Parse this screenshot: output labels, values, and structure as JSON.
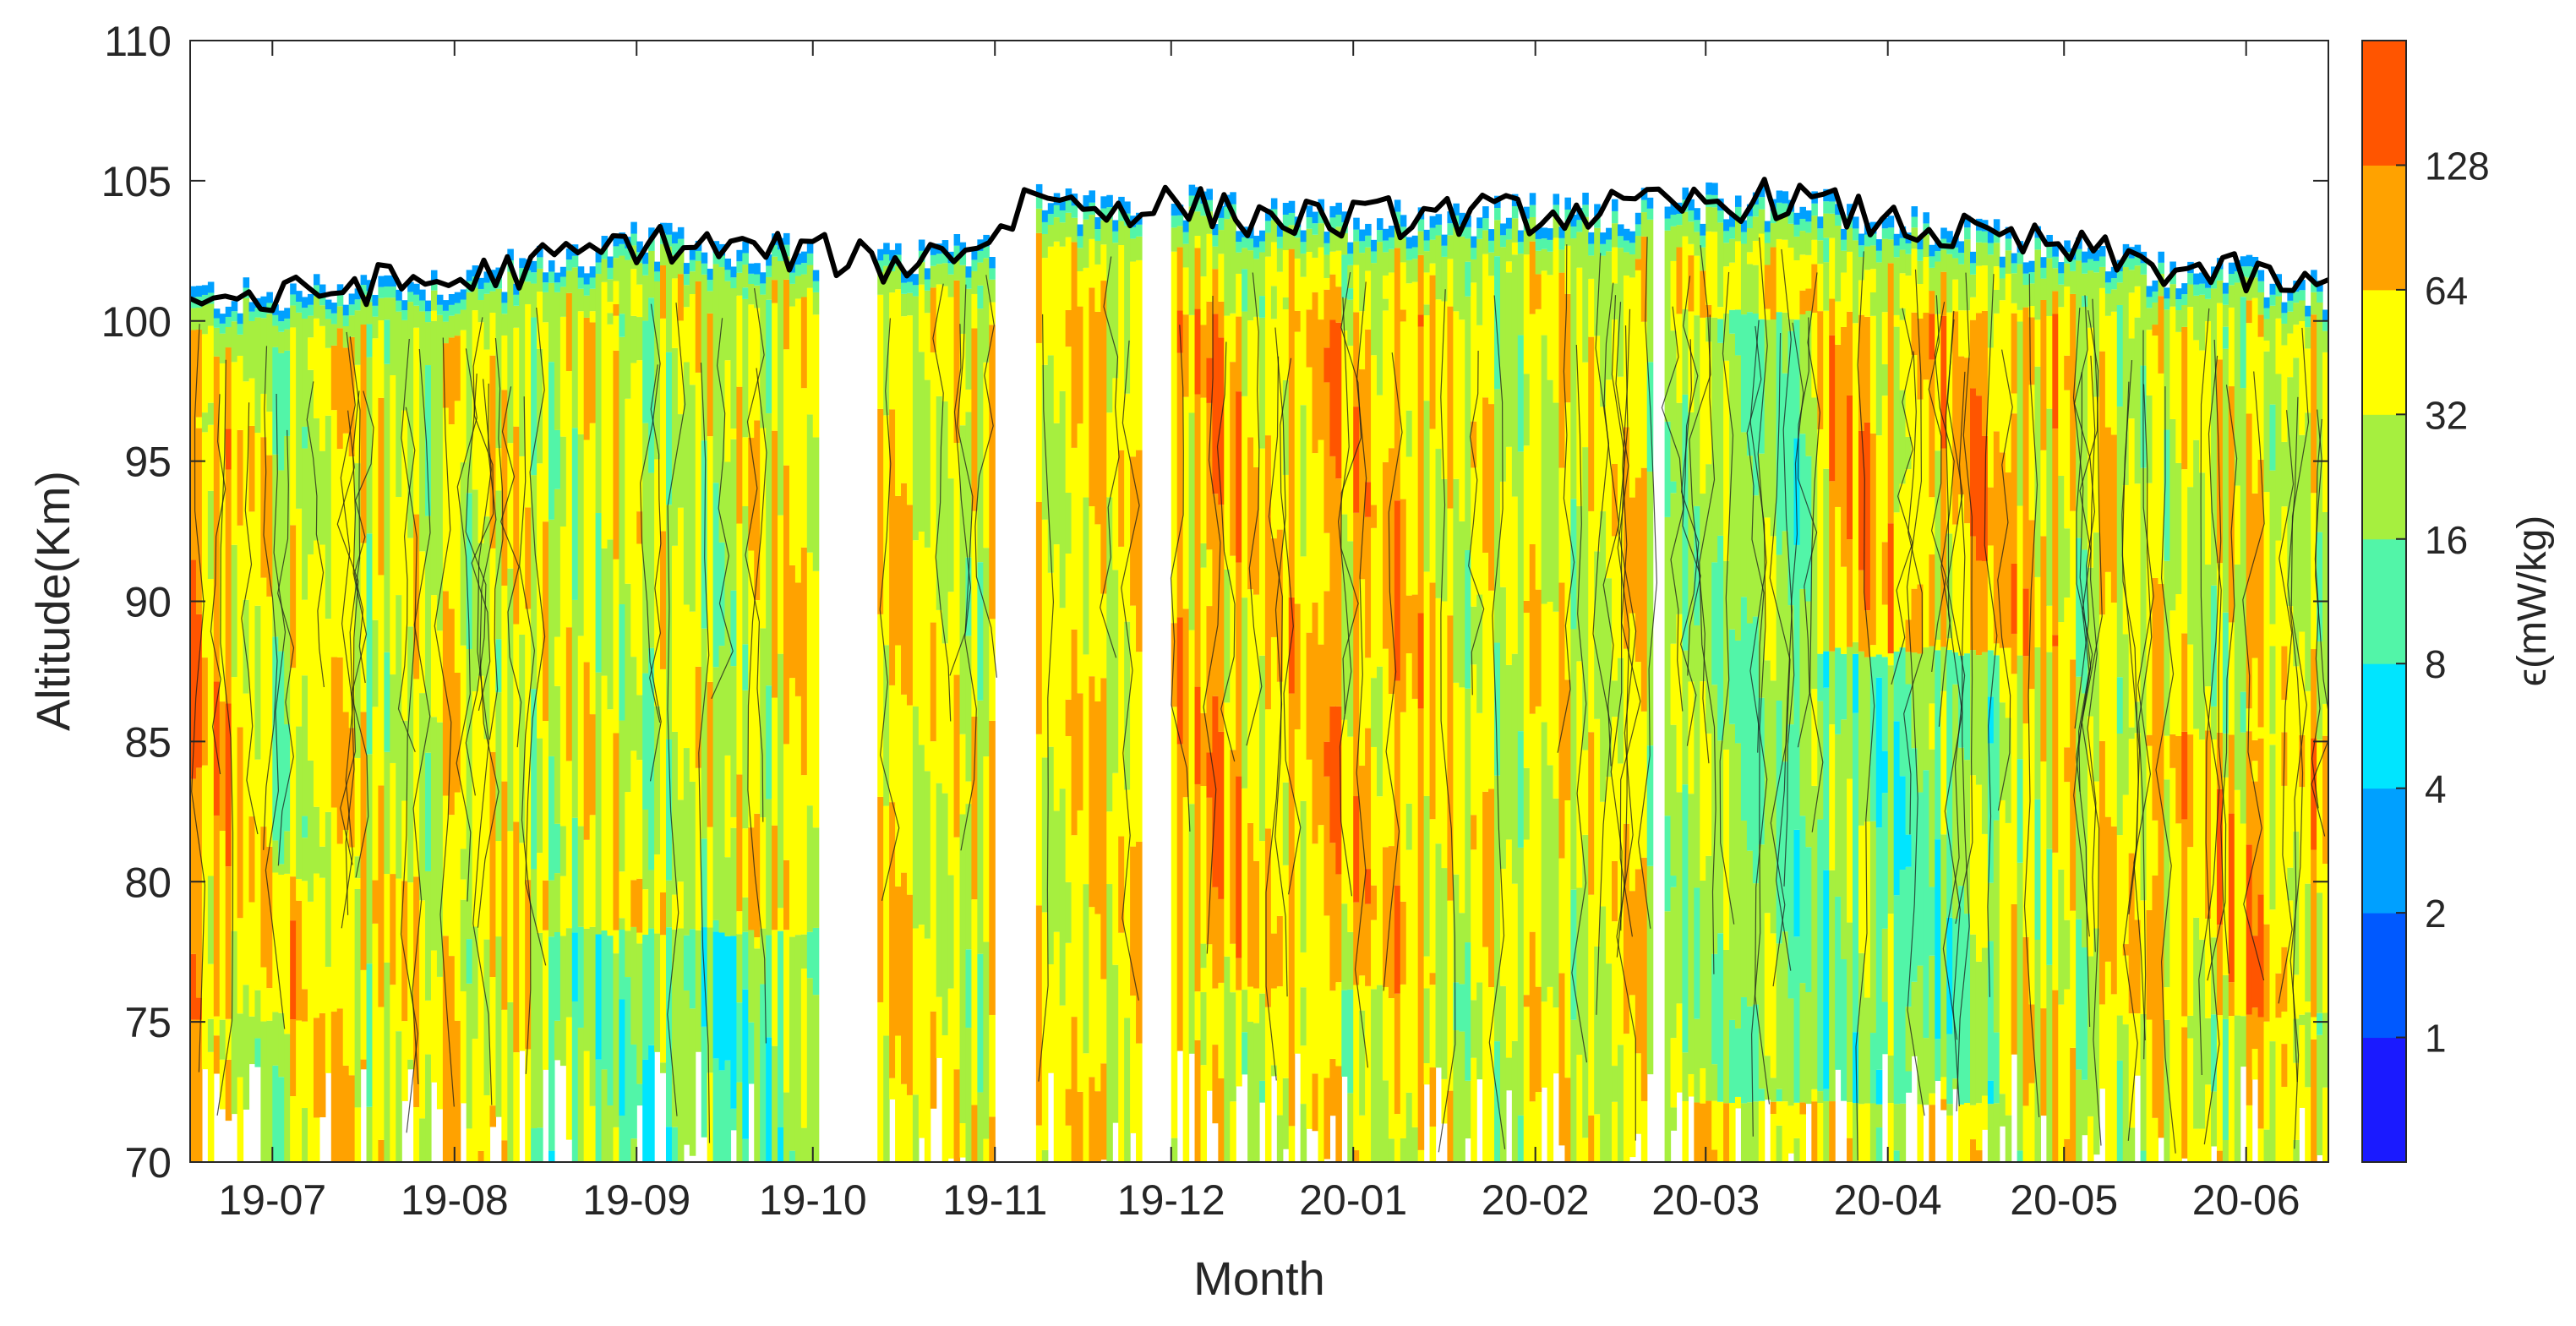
{
  "chart_data": {
    "type": "heatmap",
    "subtype": "filled-contour",
    "xlabel": "Month",
    "ylabel": "Altitude(Km)",
    "colorbar_label": "ϵ(mW/kg)",
    "x_ticks": [
      "19-07",
      "19-08",
      "19-09",
      "19-10",
      "19-11",
      "19-12",
      "20-01",
      "20-02",
      "20-03",
      "20-04",
      "20-05",
      "20-06"
    ],
    "xlim": [
      "2019-06-17",
      "2020-06-15"
    ],
    "ylim": [
      70,
      110
    ],
    "y_ticks": [
      70,
      75,
      80,
      85,
      90,
      95,
      100,
      105,
      110
    ],
    "grid": false,
    "colorbar": {
      "scale": "log2",
      "levels": [
        0.5,
        1,
        2,
        4,
        8,
        16,
        32,
        64,
        128,
        256
      ],
      "tick_labels": [
        "1",
        "2",
        "4",
        "8",
        "16",
        "32",
        "64",
        "128"
      ],
      "colors": [
        "#1a1aff",
        "#0059ff",
        "#00a0ff",
        "#00e5ff",
        "#52f5a8",
        "#a6ef3f",
        "#ffff00",
        "#ffa200",
        "#ff5500"
      ]
    },
    "data_gaps": [
      [
        "2019-10-02",
        "2019-10-12"
      ],
      [
        "2019-11-01",
        "2019-11-08"
      ],
      [
        "2019-11-26",
        "2019-12-01"
      ],
      [
        "2020-02-21",
        "2020-02-23"
      ]
    ],
    "regime_summary": [
      {
        "period": [
          "2019-06-17",
          "2019-07-07"
        ],
        "alt_range": [
          75,
          96
        ],
        "level": 64
      },
      {
        "period": [
          "2019-07-01",
          "2019-09-15"
        ],
        "alt_range": [
          80,
          100
        ],
        "level": 32
      },
      {
        "period": [
          "2019-08-15",
          "2019-10-02"
        ],
        "alt_range": [
          70,
          78
        ],
        "level": 16
      },
      {
        "period": [
          "2019-12-01",
          "2020-01-20"
        ],
        "alt_range": [
          76,
          100
        ],
        "level": 64
      },
      {
        "period": [
          "2020-02-25",
          "2020-04-20"
        ],
        "alt_range": [
          72,
          100
        ],
        "level": 16
      },
      {
        "period": [
          "2020-03-20",
          "2020-04-30"
        ],
        "alt_range": [
          88,
          100
        ],
        "level": 64
      },
      {
        "period": [
          "2020-05-10",
          "2020-06-15"
        ],
        "alt_range": [
          75,
          85
        ],
        "level": 64
      }
    ],
    "upper_boundary": {
      "line_color": "#000000",
      "points": [
        [
          "2019-06-17",
          101.0
        ],
        [
          "2019-07-01",
          100.7
        ],
        [
          "2019-07-15",
          101.3
        ],
        [
          "2019-08-01",
          101.4
        ],
        [
          "2019-08-15",
          102.0
        ],
        [
          "2019-09-01",
          102.8
        ],
        [
          "2019-09-15",
          102.6
        ],
        [
          "2019-10-01",
          102.4
        ],
        [
          "2019-10-15",
          102.0
        ],
        [
          "2019-11-01",
          103.0
        ],
        [
          "2019-11-08",
          104.8
        ],
        [
          "2019-11-15",
          104.0
        ],
        [
          "2019-12-01",
          104.2
        ],
        [
          "2019-12-15",
          103.7
        ],
        [
          "2020-01-01",
          103.6
        ],
        [
          "2020-01-15",
          103.8
        ],
        [
          "2020-02-01",
          103.8
        ],
        [
          "2020-02-20",
          104.0
        ],
        [
          "2020-03-01",
          104.2
        ],
        [
          "2020-03-15",
          104.4
        ],
        [
          "2020-04-01",
          103.5
        ],
        [
          "2020-04-15",
          103.0
        ],
        [
          "2020-05-01",
          102.6
        ],
        [
          "2020-05-15",
          102.0
        ],
        [
          "2020-06-01",
          101.6
        ],
        [
          "2020-06-15",
          101.0
        ]
      ]
    }
  }
}
